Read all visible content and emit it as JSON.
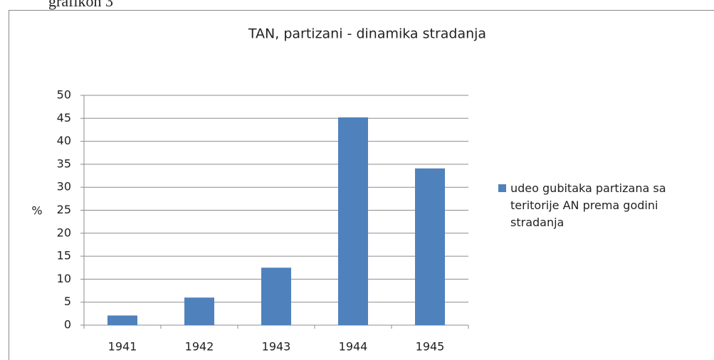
{
  "caption": "grafikon 3",
  "chart_data": {
    "type": "bar",
    "title": "TAN, partizani - dinamika stradanja",
    "ylabel": "%",
    "categories": [
      "1941",
      "1942",
      "1943",
      "1944",
      "1945"
    ],
    "series": [
      {
        "name": "udeo gubitaka partizana sa teritorije AN prema godini stradanja",
        "color": "#4f81bd",
        "values": [
          2.1,
          6.0,
          12.5,
          45.2,
          34.1
        ]
      }
    ],
    "ylim": [
      0,
      50
    ],
    "yticks": [
      0,
      5,
      10,
      15,
      20,
      25,
      30,
      35,
      40,
      45,
      50
    ],
    "grid": true,
    "legend": "right"
  }
}
